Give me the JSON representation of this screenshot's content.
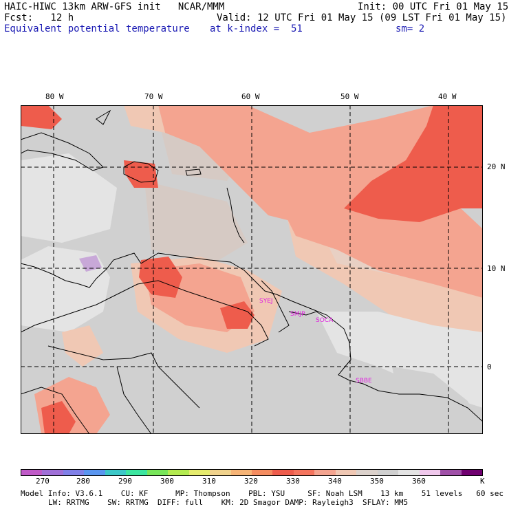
{
  "header": {
    "line1_left": "HAIC-HIWC 13km ARW-GFS init   NCAR/MMM",
    "line1_right": "Init: 00 UTC Fri 01 May 15",
    "line2_left": "Fcst:   12 h",
    "line2_right": "Valid: 12 UTC Fri 01 May 15 (09 LST Fri 01 May 15)",
    "field": "Equivalent potential temperature",
    "level": "at k-index =  51",
    "smooth": "sm= 2"
  },
  "lon_labels": [
    "80 W",
    "70 W",
    "60 W",
    "50 W",
    "40 W"
  ],
  "lat_labels": [
    "20 N",
    "10 N",
    "0"
  ],
  "stations": [
    "SYEJ",
    "SMJP",
    "SOCA",
    "SBBE"
  ],
  "colorbar": {
    "ticks": [
      "270",
      "280",
      "290",
      "300",
      "310",
      "320",
      "330",
      "340",
      "350",
      "360",
      "K"
    ],
    "colors": [
      "#c05ac8",
      "#a070d8",
      "#8080e8",
      "#5a96f0",
      "#3cc8c8",
      "#3ce6a0",
      "#78e65a",
      "#b4eb50",
      "#e6ec6e",
      "#f0d28c",
      "#f6b476",
      "#f48c60",
      "#ee5c4c",
      "#f4745e",
      "#f4a490",
      "#f0c8b4",
      "#dcd2cc",
      "#d0d0d0",
      "#e4e4e4",
      "#f0c8ec",
      "#a050a8",
      "#700070"
    ]
  },
  "footer": {
    "line1": "Model Info: V3.6.1    CU: KF      MP: Thompson    PBL: YSU     SF: Noah LSM    13 km    51 levels   60 sec",
    "line2": "LW: RRTMG    SW: RRTMG  DIFF: full    KM: 2D Smagor DAMP: Rayleigh3  SFLAY: MM5"
  }
}
